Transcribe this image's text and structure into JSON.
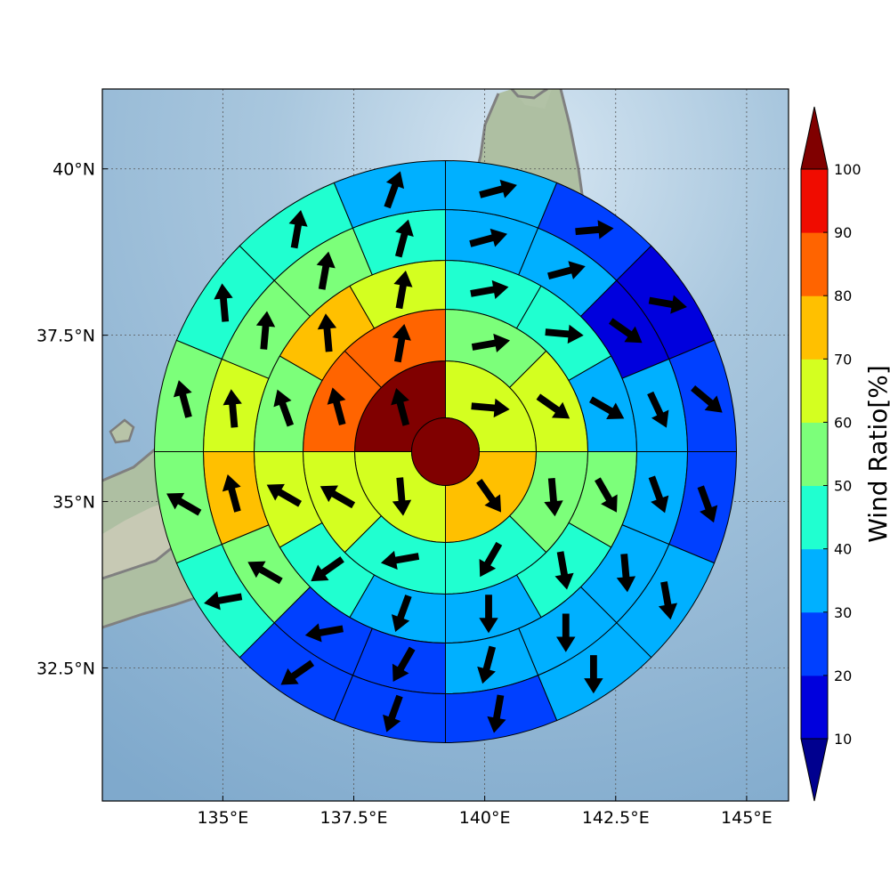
{
  "chart_data": {
    "type": "heatmap",
    "subtype": "polar-grid wind ratio map with wind direction arrows",
    "map": {
      "xlim": [
        132.7,
        145.8
      ],
      "ylim": [
        30.5,
        41.2
      ],
      "x_ticks": [
        135,
        137.5,
        140,
        142.5,
        145
      ],
      "x_tick_labels": [
        "135°E",
        "137.5°E",
        "140°E",
        "142.5°E",
        "145°E"
      ],
      "y_ticks": [
        32.5,
        35,
        37.5,
        40
      ],
      "y_tick_labels": [
        "32.5°N",
        "35°N",
        "37.5°N",
        "40°N"
      ],
      "grid": true,
      "coastlines": true,
      "background": "shaded relief"
    },
    "center": {
      "lon": 139.25,
      "lat": 35.75
    },
    "center_disk": {
      "value": 100
    },
    "rings": [
      {
        "n_sectors": 4,
        "values": [
          65,
          75,
          65,
          100
        ],
        "wind_deg": [
          95,
          145,
          175,
          345
        ]
      },
      {
        "n_sectors": 8,
        "values": [
          55,
          65,
          55,
          45,
          45,
          65,
          85,
          85
        ],
        "wind_deg": [
          80,
          125,
          175,
          210,
          260,
          300,
          345,
          10
        ]
      },
      {
        "n_sectors": 12,
        "values": [
          45,
          45,
          35,
          55,
          45,
          35,
          35,
          45,
          65,
          55,
          75,
          65
        ],
        "wind_deg": [
          80,
          95,
          120,
          150,
          170,
          180,
          200,
          235,
          300,
          340,
          355,
          10
        ]
      },
      {
        "n_sectors": 16,
        "values": [
          35,
          35,
          15,
          35,
          35,
          35,
          35,
          35,
          25,
          25,
          55,
          75,
          65,
          55,
          55,
          45
        ],
        "wind_deg": [
          75,
          75,
          125,
          155,
          160,
          175,
          180,
          195,
          210,
          260,
          300,
          345,
          355,
          5,
          10,
          15
        ]
      },
      {
        "n_sectors": 16,
        "values": [
          35,
          25,
          15,
          25,
          25,
          35,
          35,
          25,
          25,
          25,
          45,
          55,
          55,
          45,
          45,
          35
        ],
        "wind_deg": [
          75,
          85,
          100,
          130,
          160,
          170,
          180,
          190,
          200,
          235,
          260,
          300,
          345,
          355,
          10,
          20
        ]
      }
    ],
    "colorbar": {
      "label": "Wind Ratio[%]",
      "ticks": [
        10,
        20,
        30,
        40,
        50,
        60,
        70,
        80,
        90,
        100
      ],
      "levels": [
        10,
        20,
        30,
        40,
        50,
        60,
        70,
        80,
        90,
        100
      ],
      "colors": [
        "#0000dd",
        "#0040ff",
        "#00b0ff",
        "#20ffd0",
        "#7cff7a",
        "#d4ff20",
        "#ffc000",
        "#ff6400",
        "#f00c00"
      ],
      "under_color": "#00008f",
      "over_color": "#800000",
      "extend": "both"
    }
  }
}
